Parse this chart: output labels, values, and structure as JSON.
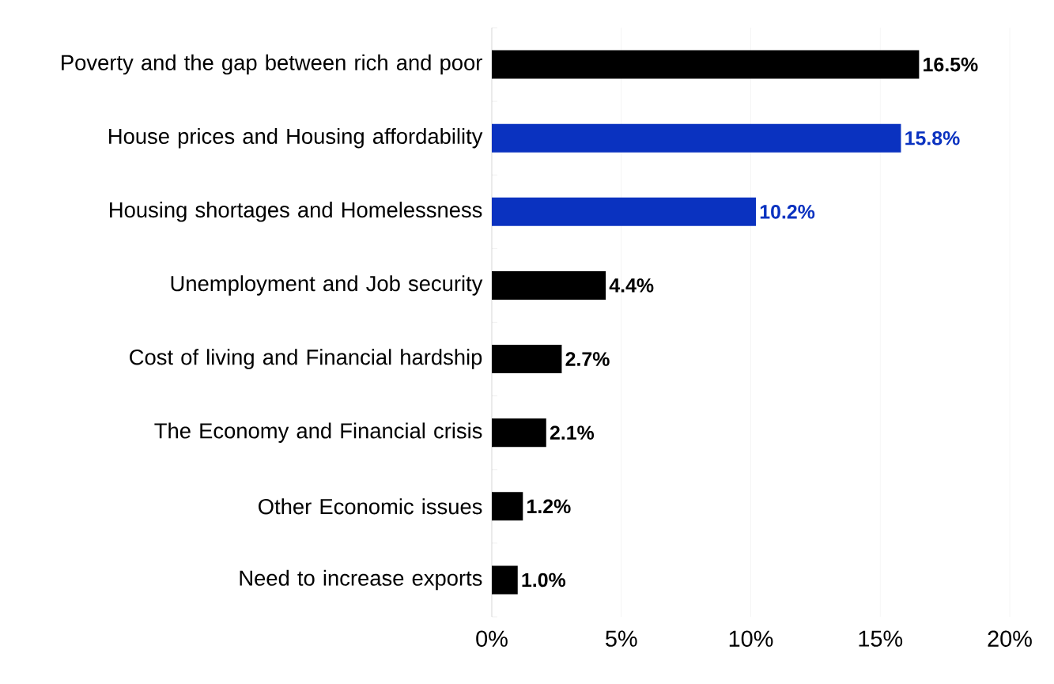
{
  "chart_data": {
    "type": "bar",
    "orientation": "horizontal",
    "categories": [
      "Poverty and the gap between rich and poor",
      "House prices and Housing affordability",
      "Housing shortages and Homelessness",
      "Unemployment and Job security",
      "Cost of living and Financial hardship",
      "The Economy and Financial crisis",
      "Other Economic issues",
      "Need to increase exports"
    ],
    "values": [
      16.5,
      15.8,
      10.2,
      4.4,
      2.7,
      2.1,
      1.2,
      1.0
    ],
    "colors": [
      "#000000",
      "#0a32c0",
      "#0a32c0",
      "#000000",
      "#000000",
      "#000000",
      "#000000",
      "#000000"
    ],
    "value_labels": [
      "16.5%",
      "15.8%",
      "10.2%",
      "4.4%",
      "2.7%",
      "2.1%",
      "1.2%",
      "1.0%"
    ],
    "xlim": [
      0,
      20
    ],
    "xticks": [
      {
        "value": 0,
        "label": "0%"
      },
      {
        "value": 5,
        "label": "5%"
      },
      {
        "value": 10,
        "label": "10%"
      },
      {
        "value": 15,
        "label": "15%"
      },
      {
        "value": 20,
        "label": "20%"
      }
    ],
    "grid": "x"
  }
}
